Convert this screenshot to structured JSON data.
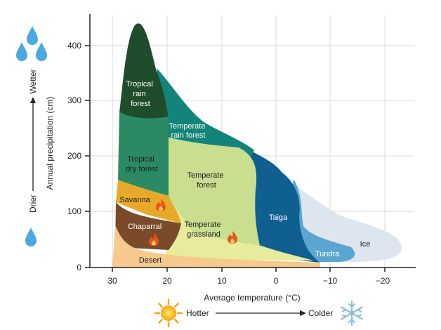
{
  "axes": {
    "y_title": "Annual precipitation (cm)",
    "x_title": "Average temperature (°C)",
    "y_ticks": [
      "0",
      "100",
      "200",
      "300",
      "400"
    ],
    "x_ticks": [
      "30",
      "20",
      "10",
      "0",
      "−10",
      "−20"
    ]
  },
  "gradients": {
    "wetter": "Wetter",
    "drier": "Drier",
    "hotter": "Hotter",
    "colder": "Colder"
  },
  "biomes": {
    "tropical_rain_forest": [
      "Tropical",
      "rain",
      "forest"
    ],
    "temperate_rain_forest": [
      "Temperate",
      "rain forest"
    ],
    "tropical_dry_forest": [
      "Tropical",
      "dry forest"
    ],
    "temperate_forest": [
      "Temperate",
      "forest"
    ],
    "savanna": [
      "Savanna"
    ],
    "chaparral": [
      "Chaparral"
    ],
    "temperate_grassland": [
      "Temperate",
      "grassland"
    ],
    "taiga": [
      "Taiga"
    ],
    "tundra": [
      "Tundra"
    ],
    "ice": [
      "Ice"
    ],
    "desert": [
      "Desert"
    ]
  },
  "colors": {
    "tropical_rain_forest": "#1f4d2b",
    "temperate_rain_forest": "#13847a",
    "tropical_dry_forest": "#2b8a64",
    "temperate_forest": "#c9de8e",
    "savanna": "#e7a92a",
    "chaparral": "#7a4a2a",
    "temperate_grassland": "#e6ec9c",
    "taiga": "#0f5f90",
    "tundra": "#5aa6d0",
    "ice": "#dde5ee",
    "desert": "#f7c98d",
    "water_drop": "#4aa9df",
    "fire": "#e8541b"
  },
  "icons": {
    "water_drops": "water-drop-icon",
    "fire": "fire-icon",
    "sun": "sun-icon",
    "snowflake": "snowflake-icon"
  }
}
